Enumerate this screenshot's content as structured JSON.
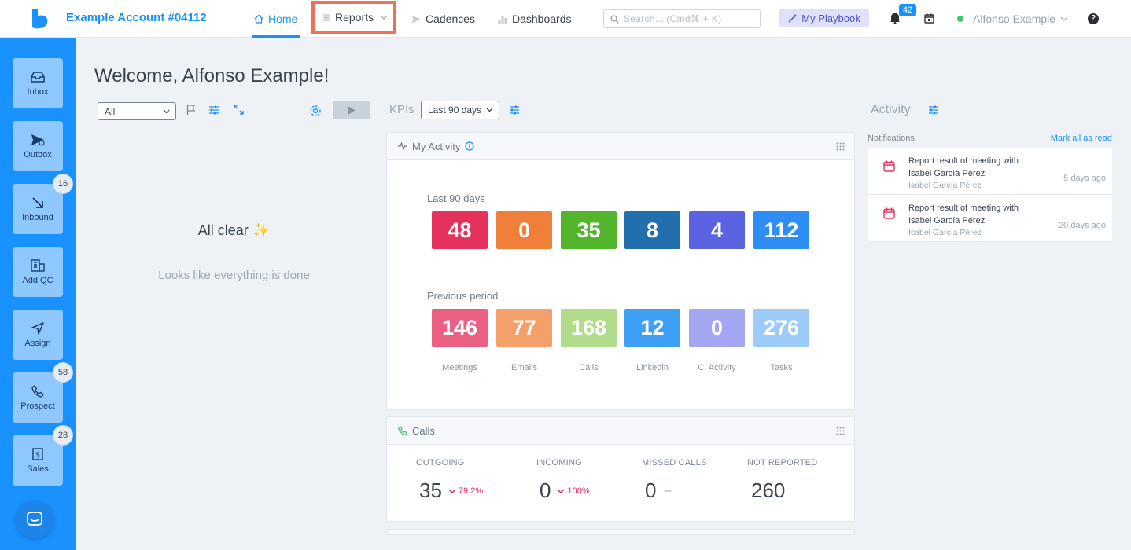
{
  "header": {
    "account": "Example Account #04112",
    "nav": {
      "home": "Home",
      "reports": "Reports",
      "cadences": "Cadences",
      "dashboards": "Dashboards"
    },
    "search_placeholder": "Search... (Cmd⌘ + K)",
    "playbook": "My Playbook",
    "notifications_count": "42",
    "user_name": "Alfonso Example",
    "help": "?"
  },
  "sidebar": {
    "items": [
      {
        "label": "Inbox",
        "badge": ""
      },
      {
        "label": "Outbox",
        "badge": ""
      },
      {
        "label": "Inbound",
        "badge": "16"
      },
      {
        "label": "Add QC",
        "badge": ""
      },
      {
        "label": "Assign",
        "badge": ""
      },
      {
        "label": "Prospect",
        "badge": "58"
      },
      {
        "label": "Sales",
        "badge": "28"
      }
    ]
  },
  "main": {
    "welcome": "Welcome, Alfonso Example!",
    "filter_value": "All",
    "all_clear": "All clear ✨",
    "done_text": "Looks like everything is done"
  },
  "kpis": {
    "label": "KPIs",
    "range": "Last 90 days",
    "my_activity_title": "My Activity",
    "current_label": "Last 90 days",
    "previous_label": "Previous period",
    "categories": [
      "Meetings",
      "Emails",
      "Calls",
      "Linkedin",
      "C. Activity",
      "Tasks"
    ],
    "current": [
      "48",
      "0",
      "35",
      "8",
      "4",
      "112"
    ],
    "previous": [
      "146",
      "77",
      "168",
      "12",
      "0",
      "276"
    ],
    "colors": [
      "#e5325c",
      "#f07f3a",
      "#52b52c",
      "#2170ad",
      "#5c63e3",
      "#2e8ef6"
    ],
    "colors_prev": [
      "#ea5f82",
      "#f4a06a",
      "#b1dc8c",
      "#3ea0f4",
      "#a3a7f2",
      "#9ccbfa"
    ]
  },
  "calls": {
    "title": "Calls",
    "outgoing": {
      "label": "OUTGOING",
      "value": "35",
      "delta": "79.2%"
    },
    "incoming": {
      "label": "INCOMING",
      "value": "0",
      "delta": "100%"
    },
    "missed": {
      "label": "MISSED CALLS",
      "value": "0",
      "delta": "–"
    },
    "not_reported": {
      "label": "NOT REPORTED",
      "value": "260"
    }
  },
  "activity": {
    "label": "Activity",
    "notifications_label": "Notifications",
    "mark_all_read": "Mark all as read",
    "items": [
      {
        "title": "Report result of meeting with Isabel García Pérez",
        "name": "Isabel García Pérez",
        "time": "5 days ago"
      },
      {
        "title": "Report result of meeting with Isabel García Pérez",
        "name": "Isabel García Pérez",
        "time": "20 days ago"
      }
    ]
  }
}
